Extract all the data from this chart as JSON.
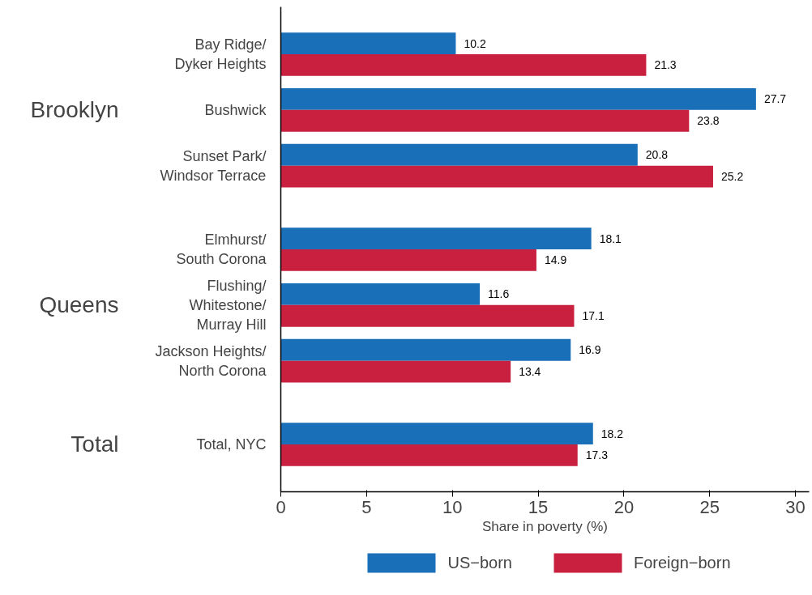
{
  "chart_data": {
    "type": "bar",
    "orientation": "horizontal",
    "categories": [
      "Bay Ridge/\nDyker Heights",
      "Bushwick",
      "Sunset Park/\nWindsor Terrace",
      null,
      "Elmhurst/\nSouth Corona",
      "Flushing/\nWhitestone/\nMurray Hill",
      "Jackson Heights/\nNorth Corona",
      null,
      "Total, NYC"
    ],
    "series": [
      {
        "name": "US−born",
        "color": "#1a6fb9",
        "values": [
          10.2,
          27.7,
          20.8,
          null,
          18.1,
          11.6,
          16.9,
          null,
          18.2
        ]
      },
      {
        "name": "Foreign−born",
        "color": "#c8203e",
        "values": [
          21.3,
          23.8,
          25.2,
          null,
          14.9,
          17.1,
          13.4,
          null,
          17.3
        ]
      }
    ],
    "xlabel": "Share in poverty (%)",
    "xlim": [
      0,
      30.8
    ],
    "xticks": [
      0,
      5,
      10,
      15,
      20,
      25,
      30
    ],
    "annotations": [
      "Brooklyn",
      "Queens",
      "Total"
    ],
    "data_labels": true,
    "grid": false,
    "legend": "bottom"
  }
}
